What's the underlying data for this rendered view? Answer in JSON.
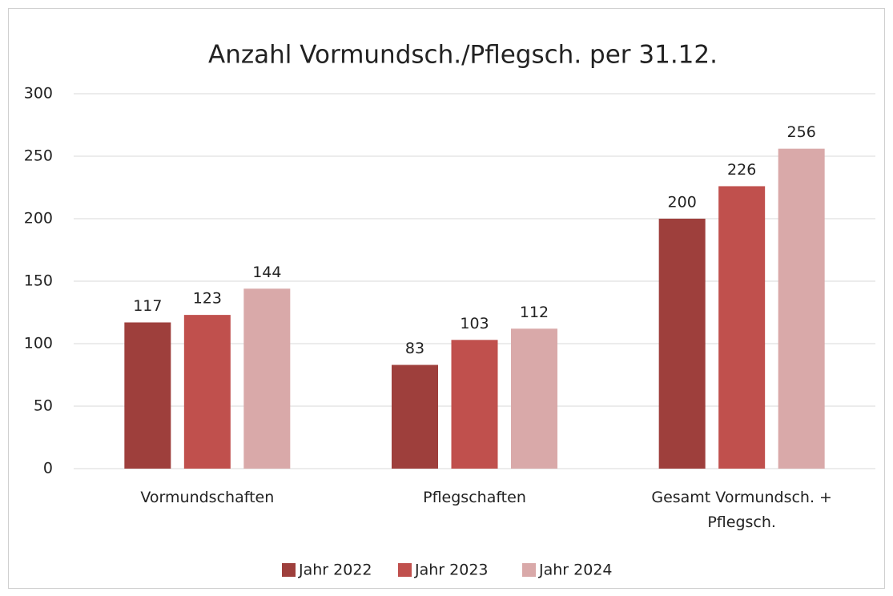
{
  "chart_data": {
    "type": "bar",
    "title": "Anzahl Vormundsch./Pflegsch. per 31.12.",
    "categories": [
      "Vormundschaften",
      "Pflegschaften",
      "Gesamt Vormundsch. + Pflegsch."
    ],
    "series": [
      {
        "name": "Jahr 2022",
        "color": "#9e3f3c",
        "values": [
          117,
          83,
          200
        ]
      },
      {
        "name": "Jahr 2023",
        "color": "#c0504d",
        "values": [
          123,
          103,
          226
        ]
      },
      {
        "name": "Jahr 2024",
        "color": "#d9a9a9",
        "values": [
          144,
          112,
          256
        ]
      }
    ],
    "ylim": [
      0,
      300
    ],
    "yticks": [
      0,
      50,
      100,
      150,
      200,
      250,
      300
    ],
    "grid": true,
    "legend": "bottom"
  }
}
